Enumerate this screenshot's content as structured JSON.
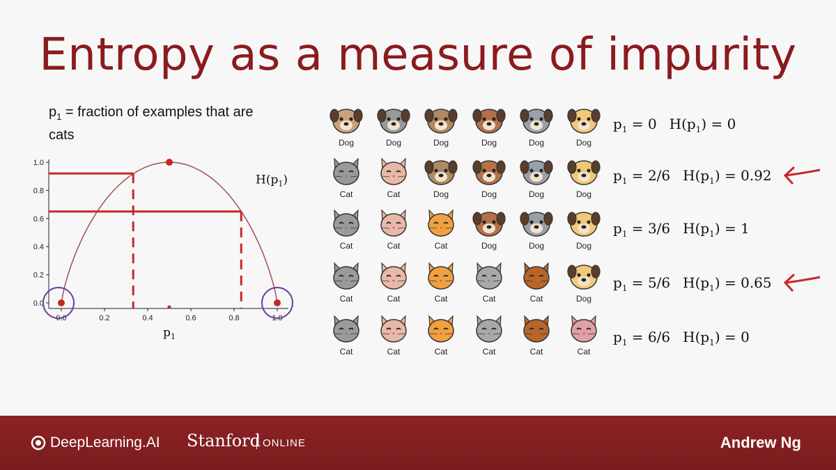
{
  "slide": {
    "title": "Entropy as a measure of impurity",
    "definition": {
      "symbol": "p",
      "subscript": "1",
      "text": " = fraction of examples that are cats"
    }
  },
  "chart_data": {
    "type": "line",
    "function": "binary entropy",
    "x_ticks": [
      "0.0",
      "0.2",
      "0.4",
      "0.6",
      "0.8",
      "1.0"
    ],
    "y_ticks": [
      "0.0",
      "0.2",
      "0.4",
      "0.6",
      "0.8",
      "1.0"
    ],
    "xlim": [
      0,
      1
    ],
    "ylim": [
      0,
      1
    ],
    "xlabel": "p",
    "xlabel_sub": "1",
    "curve_label": "H(p",
    "curve_label_sub": "1",
    "curve_label_end": ")",
    "marked_points": [
      {
        "x": 0,
        "y": 0
      },
      {
        "x": 1,
        "y": 0
      },
      {
        "x": 0.5,
        "y": 1
      }
    ],
    "guide_lines": [
      {
        "x": 0.333,
        "y": 0.92
      },
      {
        "x": 0.833,
        "y": 0.65
      }
    ],
    "accent_color": "#c62828",
    "curve_color": "#a05050",
    "circle_color": "#6a3fa0"
  },
  "rows": [
    {
      "pets": [
        "Dog",
        "Dog",
        "Dog",
        "Dog",
        "Dog",
        "Dog"
      ],
      "eq": {
        "p_val": "0",
        "h_val": "0"
      },
      "arrow": false
    },
    {
      "pets": [
        "Cat",
        "Cat",
        "Dog",
        "Dog",
        "Dog",
        "Dog"
      ],
      "eq": {
        "p_val": "2/6",
        "h_val": "0.92"
      },
      "arrow": true
    },
    {
      "pets": [
        "Cat",
        "Cat",
        "Cat",
        "Dog",
        "Dog",
        "Dog"
      ],
      "eq": {
        "p_val": "3/6",
        "h_val": "1"
      },
      "arrow": false
    },
    {
      "pets": [
        "Cat",
        "Cat",
        "Cat",
        "Cat",
        "Cat",
        "Dog"
      ],
      "eq": {
        "p_val": "5/6",
        "h_val": "0.65"
      },
      "arrow": true
    },
    {
      "pets": [
        "Cat",
        "Cat",
        "Cat",
        "Cat",
        "Cat",
        "Cat"
      ],
      "eq": {
        "p_val": "6/6",
        "h_val": "0"
      },
      "arrow": false
    }
  ],
  "equation_parts": {
    "p": "p",
    "sub": "1",
    "eq": " = ",
    "h_open": "H(p",
    "h_close": ") = "
  },
  "footer": {
    "brand_dl": "DeepLearning.AI",
    "brand_stanford": "Stanford",
    "brand_online": "ONLINE",
    "presenter": "Andrew Ng"
  }
}
